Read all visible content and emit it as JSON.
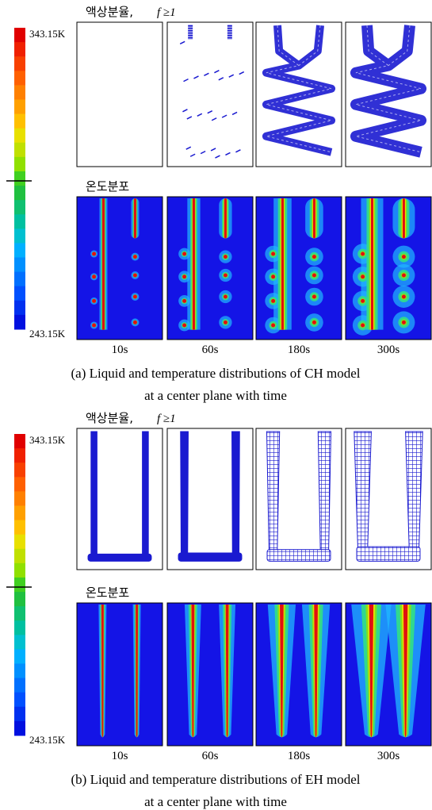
{
  "panels": [
    {
      "liquid_title": "액상분율,",
      "liquid_condition": "f ≥1",
      "temperature_title": "온도분포",
      "colorbar": {
        "max": "343.15K",
        "min": "243.15K"
      },
      "times": [
        "10s",
        "60s",
        "180s",
        "300s"
      ],
      "caption_line1": "(a) Liquid and temperature distributions of CH model",
      "caption_line2": "at a center plane with time"
    },
    {
      "liquid_title": "액상분율,",
      "liquid_condition": "f ≥1",
      "temperature_title": "온도분포",
      "colorbar": {
        "max": "343.15K",
        "min": "243.15K"
      },
      "times": [
        "10s",
        "60s",
        "180s",
        "300s"
      ],
      "caption_line1": "(b) Liquid and temperature distributions of EH model",
      "caption_line2": "at a center plane with time"
    }
  ]
}
